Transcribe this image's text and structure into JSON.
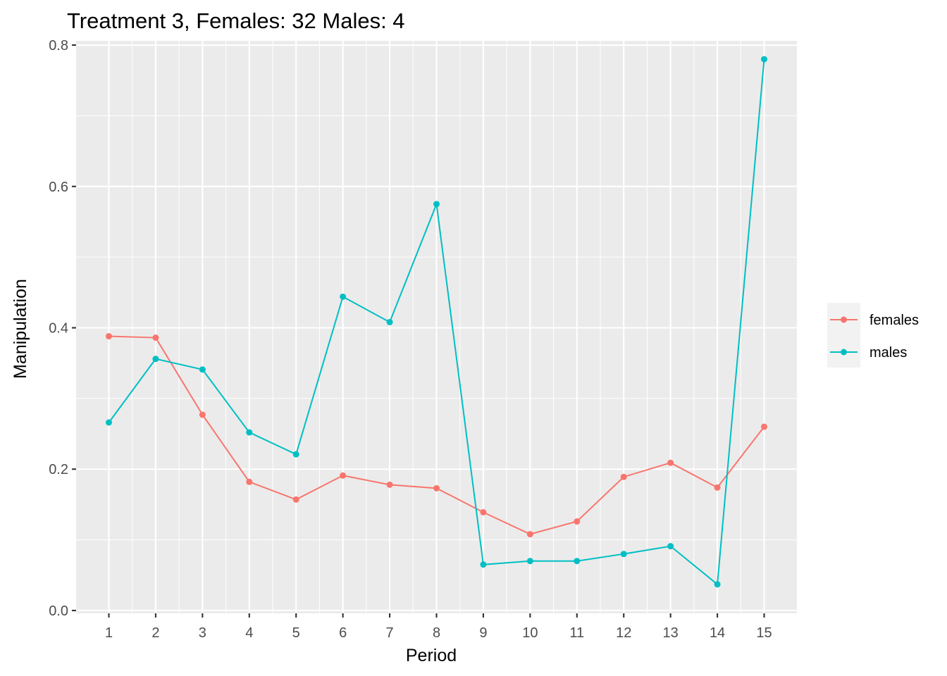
{
  "chart_data": {
    "type": "line",
    "title": "Treatment 3, Females: 32  Males: 4",
    "xlabel": "Period",
    "ylabel": "Manipulation",
    "x": [
      1,
      2,
      3,
      4,
      5,
      6,
      7,
      8,
      9,
      10,
      11,
      12,
      13,
      14,
      15
    ],
    "x_tick_labels": [
      "1",
      "2",
      "3",
      "4",
      "5",
      "6",
      "7",
      "8",
      "9",
      "10",
      "11",
      "12",
      "13",
      "14",
      "15"
    ],
    "y_ticks": [
      0.0,
      0.2,
      0.4,
      0.6,
      0.8
    ],
    "y_tick_labels": [
      "0.0",
      "0.2",
      "0.4",
      "0.6",
      "0.8"
    ],
    "xlim": [
      0.3,
      15.7
    ],
    "ylim": [
      -0.004,
      0.806
    ],
    "grid": true,
    "legend_position": "right",
    "series": [
      {
        "name": "females",
        "color": "#F8766D",
        "values": [
          0.388,
          0.386,
          0.277,
          0.182,
          0.157,
          0.191,
          0.178,
          0.173,
          0.139,
          0.108,
          0.126,
          0.189,
          0.209,
          0.174,
          0.26
        ]
      },
      {
        "name": "males",
        "color": "#00BFC4",
        "values": [
          0.266,
          0.356,
          0.341,
          0.252,
          0.221,
          0.444,
          0.408,
          0.575,
          0.065,
          0.07,
          0.07,
          0.08,
          0.091,
          0.037,
          0.78
        ]
      }
    ]
  }
}
